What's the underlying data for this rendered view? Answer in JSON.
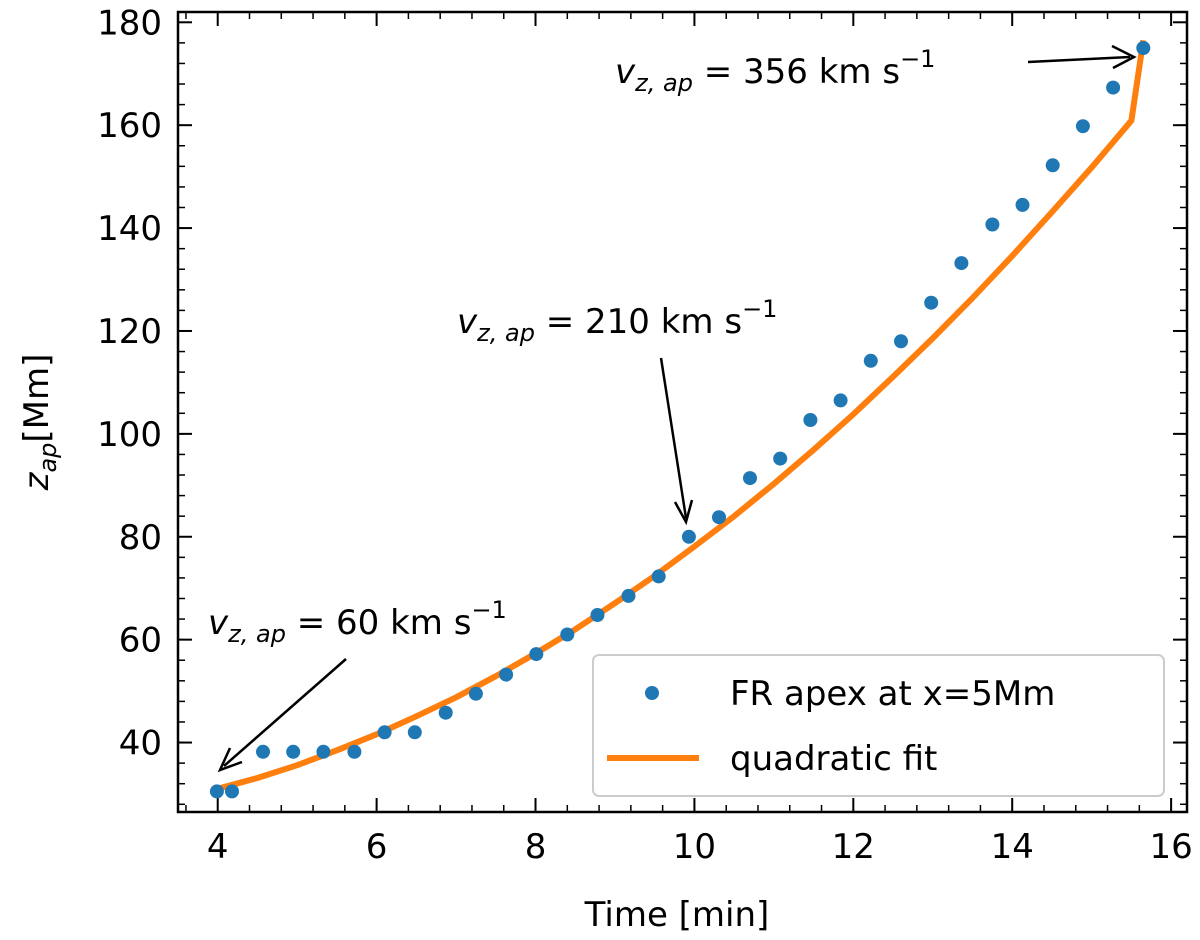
{
  "chart_data": {
    "type": "scatter",
    "title": "",
    "xlabel": "Time [min]",
    "ylabel_main": "z",
    "ylabel_sub": "ap",
    "ylabel_tail": "[Mm]",
    "xlim": [
      3.5,
      16.2
    ],
    "ylim": [
      26.5,
      182
    ],
    "x_ticks": [
      4,
      6,
      8,
      10,
      12,
      14,
      16
    ],
    "y_ticks": [
      40,
      60,
      80,
      100,
      120,
      140,
      160,
      180
    ],
    "grid": false,
    "legend_position": "lower right",
    "colors": {
      "points": "#1f77b4",
      "fit": "#ff7f0e"
    },
    "series": [
      {
        "name": "FR apex at x=5Mm",
        "kind": "scatter",
        "x": [
          3.99,
          4.18,
          4.57,
          4.95,
          5.33,
          5.72,
          6.1,
          6.48,
          6.87,
          7.25,
          7.63,
          8.01,
          8.4,
          8.78,
          9.17,
          9.55,
          9.93,
          10.31,
          10.7,
          11.08,
          11.46,
          11.84,
          12.22,
          12.6,
          12.98,
          13.36,
          13.75,
          14.13,
          14.51,
          14.89,
          15.27,
          15.65
        ],
        "y": [
          30.5,
          30.5,
          38.2,
          38.2,
          38.2,
          38.2,
          42,
          42,
          45.8,
          49.5,
          53.2,
          57.2,
          61,
          64.8,
          68.5,
          72.3,
          80,
          83.8,
          91.4,
          95.2,
          102.7,
          106.5,
          114.2,
          118,
          125.5,
          133.2,
          140.7,
          144.5,
          152.2,
          159.8,
          167.3,
          175
        ]
      },
      {
        "name": "quadratic fit",
        "kind": "line",
        "x": [
          4.0,
          4.5,
          5.0,
          5.5,
          6.0,
          6.5,
          7.0,
          7.5,
          8.0,
          8.5,
          9.0,
          9.5,
          10.0,
          10.5,
          11.0,
          11.5,
          12.0,
          12.5,
          13.0,
          13.5,
          14.0,
          14.5,
          15.0,
          15.5,
          15.65
        ],
        "y": [
          31.0,
          33.1,
          35.6,
          38.5,
          41.6,
          45.1,
          48.8,
          52.9,
          57.3,
          62.0,
          67.1,
          72.4,
          78.1,
          84.0,
          90.3,
          96.9,
          103.8,
          111.1,
          118.6,
          126.4,
          134.6,
          143.1,
          151.8,
          160.9,
          176.5
        ]
      }
    ],
    "annotations": [
      {
        "main": "v",
        "sub": "z, ap",
        "eq": " = 60 km s",
        "sup": "−1",
        "point": [
          4.0,
          32.0
        ]
      },
      {
        "main": "v",
        "sub": "z, ap",
        "eq": " = 210 km s",
        "sup": "−1",
        "point": [
          9.9,
          80.5
        ]
      },
      {
        "main": "v",
        "sub": "z, ap",
        "eq": " = 356 km s",
        "sup": "−1",
        "point": [
          15.65,
          175.5
        ]
      }
    ]
  }
}
